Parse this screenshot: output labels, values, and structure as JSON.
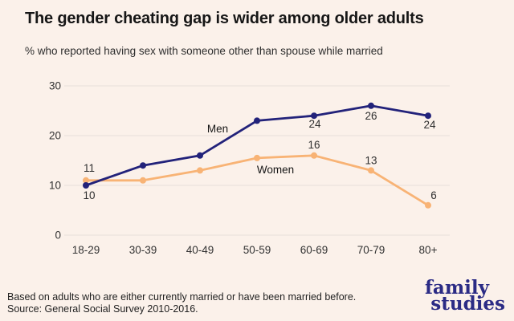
{
  "chart_data": {
    "type": "line",
    "title": "The gender cheating gap is wider among older adults",
    "subtitle": "% who reported having sex with someone other than spouse while married",
    "categories": [
      "18-29",
      "30-39",
      "40-49",
      "50-59",
      "60-69",
      "70-79",
      "80+"
    ],
    "series": [
      {
        "name": "Men",
        "color": "#22227a",
        "values": [
          10,
          14,
          16,
          23,
          24,
          26,
          24
        ],
        "labeled_points": [
          0,
          4,
          5,
          6
        ],
        "label_side": "below"
      },
      {
        "name": "Women",
        "color": "#f8b375",
        "values": [
          11,
          11,
          13,
          15.5,
          16,
          13,
          6
        ],
        "labeled_points": [
          0,
          4,
          5,
          6
        ],
        "label_side": "above"
      }
    ],
    "xlabel": "",
    "ylabel": "",
    "ylim": [
      0,
      30
    ],
    "yticks": [
      0,
      10,
      20,
      30
    ],
    "grid": "horizontal",
    "legend": "inline-series-labels"
  },
  "footer": {
    "note": "Based on adults who are either currently married or have been married before.",
    "source": "Source: General Social Survey 2010-2016."
  },
  "logo": {
    "line1": "family",
    "line2": "studies",
    "color": "#2b2b85"
  },
  "colors": {
    "background": "#fbf1ea",
    "gridline": "#e7dfda",
    "men_line": "#22227a",
    "women_line": "#f8b375"
  }
}
